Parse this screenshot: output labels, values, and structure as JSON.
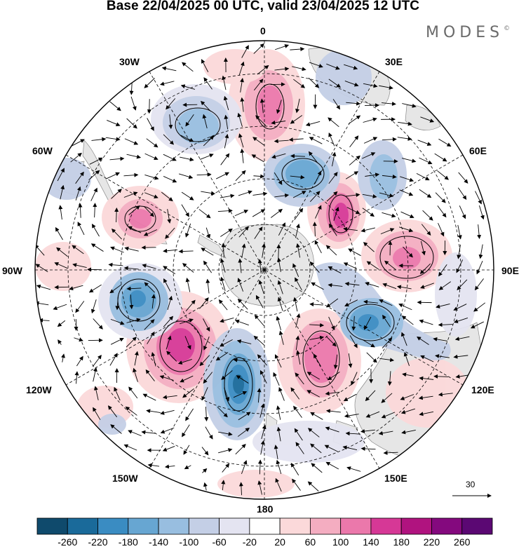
{
  "header": {
    "title": "Base 22/04/2025 00 UTC, valid 23/04/2025 12 UTC",
    "brand": "MODES",
    "brand_mark": "©"
  },
  "map": {
    "projection": "south-polar-stereographic",
    "longitude_labels": {
      "top": "0",
      "upper_left": "30W",
      "upper_right": "30E",
      "mid_upper_left": "60W",
      "mid_upper_right": "60E",
      "left": "90W",
      "right": "90E",
      "mid_lower_left": "120W",
      "mid_lower_right": "120E",
      "lower_left": "150W",
      "lower_right": "150E",
      "bottom": "180"
    },
    "reference_vector": "30",
    "colors": {
      "land": "#e6e6e6",
      "grid": "#000000",
      "positive_max": "#c2177c",
      "negative_max": "#1f6ea3"
    }
  },
  "colorbar": {
    "ticks": [
      "-260",
      "-220",
      "-180",
      "-140",
      "-100",
      "-60",
      "-20",
      "20",
      "60",
      "100",
      "140",
      "180",
      "220",
      "260"
    ],
    "colors": [
      "#0f4a6c",
      "#1a6a9a",
      "#3a8cc2",
      "#67a6d2",
      "#98bee0",
      "#c4cfe6",
      "#e4e4f1",
      "#ffffff",
      "#fbd9da",
      "#f4adc1",
      "#eb78ab",
      "#d63896",
      "#b0137f",
      "#84097e",
      "#5b0873"
    ]
  }
}
